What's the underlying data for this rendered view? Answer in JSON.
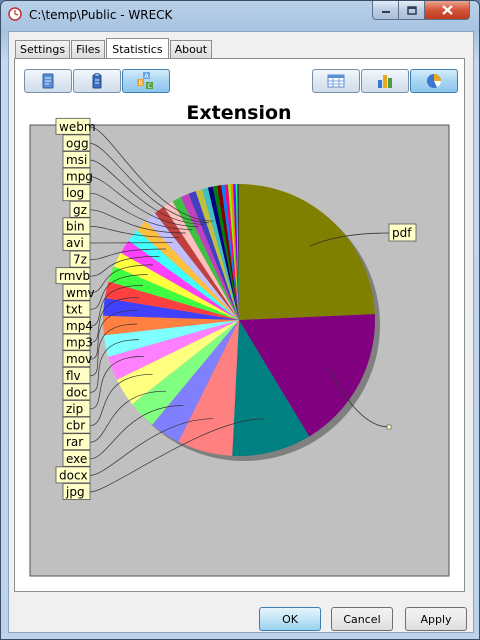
{
  "window": {
    "title": "C:\\temp\\Public - WRECK"
  },
  "tabs": [
    {
      "label": "Settings"
    },
    {
      "label": "Files"
    },
    {
      "label": "Statistics",
      "active": true
    },
    {
      "label": "About"
    }
  ],
  "toolbar": {
    "left_icons": [
      "document-icon",
      "file-type-icon",
      "abc-sort-icon"
    ],
    "right_icons": [
      "table-view-icon",
      "bar-chart-icon",
      "pie-chart-icon"
    ],
    "active_right": "pie-chart-icon",
    "active_left": "abc-sort-icon"
  },
  "chart_data": {
    "type": "pie",
    "title": "Extension",
    "background": "#c0c0c0",
    "slices": [
      {
        "label": "pdf",
        "value": 24.5,
        "color": "#808000"
      },
      {
        "label": "",
        "value": 17.2,
        "color": "#800080"
      },
      {
        "label": "jpg",
        "value": 9.5,
        "color": "#008080"
      },
      {
        "label": "docx",
        "value": 6.6,
        "color": "#ff8080"
      },
      {
        "label": "exe",
        "value": 3.7,
        "color": "#8080ff"
      },
      {
        "label": "rar",
        "value": 3.4,
        "color": "#80ff80"
      },
      {
        "label": "cbr",
        "value": 3.4,
        "color": "#ffff80"
      },
      {
        "label": "zip",
        "value": 2.9,
        "color": "#ff80ff"
      },
      {
        "label": "doc",
        "value": 2.6,
        "color": "#80ffff"
      },
      {
        "label": "flv",
        "value": 2.3,
        "color": "#ff8040"
      },
      {
        "label": "mov",
        "value": 2.1,
        "color": "#4040ff"
      },
      {
        "label": "mp3",
        "value": 2.0,
        "color": "#ff4040"
      },
      {
        "label": "mp4",
        "value": 1.9,
        "color": "#40ff40"
      },
      {
        "label": "txt",
        "value": 1.8,
        "color": "#ffff40"
      },
      {
        "label": "wmv",
        "value": 1.7,
        "color": "#ff40ff"
      },
      {
        "label": "rmvb",
        "value": 1.6,
        "color": "#40ffff"
      },
      {
        "label": "7z",
        "value": 1.5,
        "color": "#ffc040"
      },
      {
        "label": "avi",
        "value": 1.4,
        "color": "#c0c0ff"
      },
      {
        "label": "bin",
        "value": 1.3,
        "color": "#c04040"
      },
      {
        "label": "gz",
        "value": 1.2,
        "color": "#ffc0c0"
      },
      {
        "label": "log",
        "value": 1.1,
        "color": "#40c040"
      },
      {
        "label": "mpg",
        "value": 1.0,
        "color": "#c040c0"
      },
      {
        "label": "msi",
        "value": 0.9,
        "color": "#4040c0"
      },
      {
        "label": "ogg",
        "value": 0.8,
        "color": "#c0c040"
      },
      {
        "label": "webm",
        "value": 0.7,
        "color": "#40c0c0"
      },
      {
        "label": "",
        "value": 0.6,
        "color": "#000080"
      },
      {
        "label": "",
        "value": 0.5,
        "color": "#008000"
      },
      {
        "label": "",
        "value": 0.5,
        "color": "#800000"
      },
      {
        "label": "",
        "value": 0.4,
        "color": "#0080ff"
      },
      {
        "label": "",
        "value": 0.4,
        "color": "#ff0080"
      },
      {
        "label": "",
        "value": 0.3,
        "color": "#80ff00"
      },
      {
        "label": "",
        "value": 0.3,
        "color": "#ff8000"
      },
      {
        "label": "",
        "value": 0.3,
        "color": "#8000ff"
      },
      {
        "label": "",
        "value": 0.2,
        "color": "#00ff80"
      },
      {
        "label": "",
        "value": 0.2,
        "color": "#404040"
      }
    ]
  },
  "buttons": {
    "ok": "OK",
    "cancel": "Cancel",
    "apply": "Apply"
  }
}
